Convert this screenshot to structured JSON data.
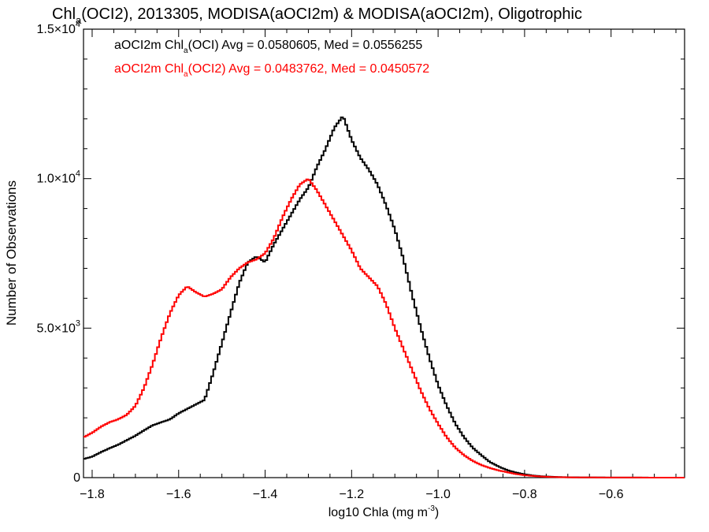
{
  "chart_data": {
    "type": "line",
    "title": {
      "prefix": "Chl",
      "sub": "a",
      "rest": "(OCI2), 2013305, MODISA(aOCI2m) & MODISA(aOCI2m), Oligotrophic"
    },
    "xlabel": {
      "main": "log10 Chla (mg m",
      "sup": "-3",
      "end": ")"
    },
    "ylabel": "Number of Observations",
    "xlim": [
      -1.82,
      -0.43
    ],
    "ylim": [
      0,
      15000
    ],
    "x_ticks": [
      {
        "v": -1.8,
        "label": "−1.8"
      },
      {
        "v": -1.6,
        "label": "−1.6"
      },
      {
        "v": -1.4,
        "label": "−1.4"
      },
      {
        "v": -1.2,
        "label": "−1.2"
      },
      {
        "v": -1.0,
        "label": "−1.0"
      },
      {
        "v": -0.8,
        "label": "−0.8"
      },
      {
        "v": -0.6,
        "label": "−0.6"
      }
    ],
    "y_ticks": [
      {
        "v": 0,
        "mant": "0",
        "exp": ""
      },
      {
        "v": 5000,
        "mant": "5.0×10",
        "exp": "3"
      },
      {
        "v": 10000,
        "mant": "1.0×10",
        "exp": "4"
      },
      {
        "v": 15000,
        "mant": "1.5×10",
        "exp": "4"
      }
    ],
    "legend": [
      {
        "pre": "aOCI2m Chl",
        "sub": "a",
        "post": "(OCI) Avg = 0.0580605, Med = 0.0556255",
        "color": "#000000"
      },
      {
        "pre": "aOCI2m Chl",
        "sub": "a",
        "post": "(OCI2) Avg = 0.0483762, Med = 0.0450572",
        "color": "#ff0000"
      }
    ],
    "series": [
      {
        "color": "#000000",
        "points": [
          [
            -1.82,
            620
          ],
          [
            -1.8,
            700
          ],
          [
            -1.78,
            850
          ],
          [
            -1.76,
            980
          ],
          [
            -1.74,
            1100
          ],
          [
            -1.72,
            1250
          ],
          [
            -1.7,
            1400
          ],
          [
            -1.68,
            1580
          ],
          [
            -1.66,
            1750
          ],
          [
            -1.64,
            1850
          ],
          [
            -1.62,
            1950
          ],
          [
            -1.6,
            2150
          ],
          [
            -1.58,
            2300
          ],
          [
            -1.56,
            2450
          ],
          [
            -1.54,
            2600
          ],
          [
            -1.52,
            3500
          ],
          [
            -1.5,
            4500
          ],
          [
            -1.48,
            5500
          ],
          [
            -1.46,
            6500
          ],
          [
            -1.44,
            7200
          ],
          [
            -1.42,
            7400
          ],
          [
            -1.4,
            7200
          ],
          [
            -1.38,
            7800
          ],
          [
            -1.36,
            8300
          ],
          [
            -1.34,
            8800
          ],
          [
            -1.32,
            9300
          ],
          [
            -1.3,
            9700
          ],
          [
            -1.28,
            10400
          ],
          [
            -1.26,
            11000
          ],
          [
            -1.24,
            11700
          ],
          [
            -1.22,
            12100
          ],
          [
            -1.2,
            11300
          ],
          [
            -1.18,
            10700
          ],
          [
            -1.16,
            10300
          ],
          [
            -1.14,
            9800
          ],
          [
            -1.12,
            9100
          ],
          [
            -1.1,
            8300
          ],
          [
            -1.08,
            7300
          ],
          [
            -1.06,
            6100
          ],
          [
            -1.04,
            5000
          ],
          [
            -1.02,
            4000
          ],
          [
            -1.0,
            3100
          ],
          [
            -0.98,
            2400
          ],
          [
            -0.96,
            1800
          ],
          [
            -0.94,
            1350
          ],
          [
            -0.92,
            1000
          ],
          [
            -0.9,
            750
          ],
          [
            -0.88,
            520
          ],
          [
            -0.86,
            370
          ],
          [
            -0.84,
            250
          ],
          [
            -0.82,
            170
          ],
          [
            -0.8,
            110
          ],
          [
            -0.78,
            70
          ],
          [
            -0.76,
            45
          ],
          [
            -0.74,
            30
          ],
          [
            -0.72,
            20
          ],
          [
            -0.7,
            12
          ],
          [
            -0.65,
            6
          ],
          [
            -0.6,
            3
          ],
          [
            -0.5,
            1
          ],
          [
            -0.43,
            0
          ]
        ]
      },
      {
        "color": "#ff0000",
        "points": [
          [
            -1.82,
            1350
          ],
          [
            -1.8,
            1500
          ],
          [
            -1.78,
            1700
          ],
          [
            -1.76,
            1850
          ],
          [
            -1.74,
            1950
          ],
          [
            -1.72,
            2100
          ],
          [
            -1.7,
            2400
          ],
          [
            -1.68,
            3000
          ],
          [
            -1.66,
            3800
          ],
          [
            -1.64,
            4700
          ],
          [
            -1.62,
            5500
          ],
          [
            -1.6,
            6100
          ],
          [
            -1.58,
            6400
          ],
          [
            -1.56,
            6200
          ],
          [
            -1.54,
            6050
          ],
          [
            -1.52,
            6150
          ],
          [
            -1.5,
            6300
          ],
          [
            -1.48,
            6700
          ],
          [
            -1.46,
            7000
          ],
          [
            -1.44,
            7200
          ],
          [
            -1.42,
            7300
          ],
          [
            -1.4,
            7500
          ],
          [
            -1.38,
            8000
          ],
          [
            -1.36,
            8700
          ],
          [
            -1.34,
            9300
          ],
          [
            -1.32,
            9800
          ],
          [
            -1.3,
            10000
          ],
          [
            -1.28,
            9600
          ],
          [
            -1.26,
            9100
          ],
          [
            -1.24,
            8600
          ],
          [
            -1.22,
            8100
          ],
          [
            -1.2,
            7600
          ],
          [
            -1.18,
            7000
          ],
          [
            -1.16,
            6700
          ],
          [
            -1.14,
            6400
          ],
          [
            -1.12,
            5800
          ],
          [
            -1.1,
            5000
          ],
          [
            -1.08,
            4300
          ],
          [
            -1.06,
            3600
          ],
          [
            -1.04,
            2900
          ],
          [
            -1.02,
            2300
          ],
          [
            -1.0,
            1800
          ],
          [
            -0.98,
            1350
          ],
          [
            -0.96,
            1000
          ],
          [
            -0.94,
            750
          ],
          [
            -0.92,
            560
          ],
          [
            -0.9,
            420
          ],
          [
            -0.88,
            320
          ],
          [
            -0.86,
            240
          ],
          [
            -0.84,
            180
          ],
          [
            -0.82,
            120
          ],
          [
            -0.8,
            80
          ],
          [
            -0.78,
            55
          ],
          [
            -0.76,
            35
          ],
          [
            -0.74,
            22
          ],
          [
            -0.72,
            15
          ],
          [
            -0.7,
            10
          ],
          [
            -0.65,
            5
          ],
          [
            -0.6,
            2
          ],
          [
            -0.5,
            1
          ],
          [
            -0.43,
            0
          ]
        ]
      }
    ]
  }
}
